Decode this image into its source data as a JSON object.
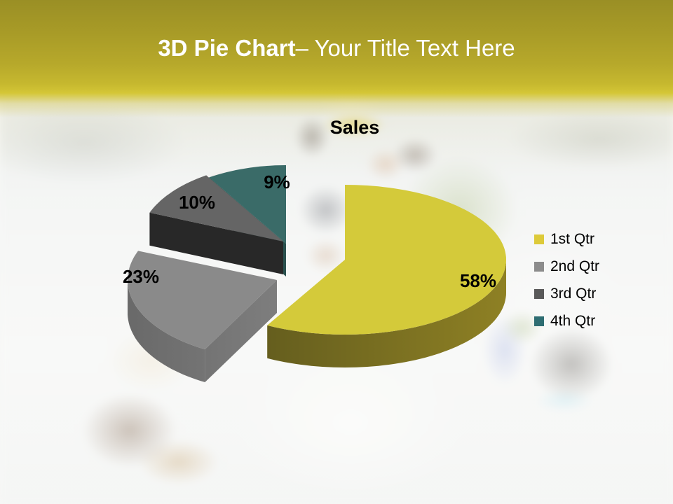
{
  "slide": {
    "title_bold": "3D Pie Chart",
    "title_rest": "– Your Title Text Here"
  },
  "chart_data": {
    "type": "pie",
    "effect": "3d-exploded",
    "title": "Sales",
    "categories": [
      "1st Qtr",
      "2nd Qtr",
      "3rd Qtr",
      "4th Qtr"
    ],
    "values": [
      58,
      23,
      10,
      9
    ],
    "labels": [
      "58%",
      "23%",
      "10%",
      "9%"
    ],
    "colors": [
      "#d4ca3a",
      "#8a8a8a",
      "#656565",
      "#3a6b68"
    ],
    "side_colors": [
      "#756b1e",
      "#737373",
      "#282828",
      "#1f4140"
    ],
    "legend_colors": [
      "#ddca39",
      "#8c8c8c",
      "#595959",
      "#2e6d72"
    ],
    "label_color": "#000000",
    "legend_position": "right",
    "start_angle_deg": 90,
    "direction": "clockwise"
  }
}
